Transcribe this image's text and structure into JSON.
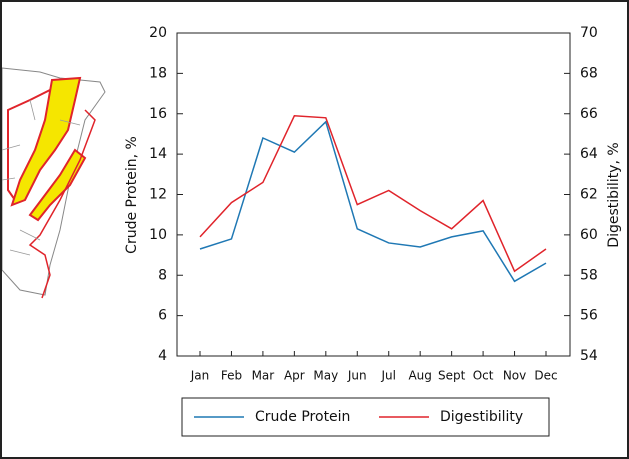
{
  "chart_data": {
    "type": "line",
    "categories": [
      "Jan",
      "Feb",
      "Mar",
      "Apr",
      "May",
      "Jun",
      "Jul",
      "Aug",
      "Sept",
      "Oct",
      "Nov",
      "Dec"
    ],
    "y_label": "Crude Protein, %",
    "y2_label": "Digestibility, %",
    "ylim": [
      4,
      20
    ],
    "yticks": [
      4,
      6,
      8,
      10,
      12,
      14,
      16,
      18,
      20
    ],
    "y2lim": [
      54,
      70
    ],
    "y2ticks": [
      54,
      56,
      58,
      60,
      62,
      64,
      66,
      68,
      70
    ],
    "series": [
      {
        "name": "Crude Protein",
        "color": "#1f78b4",
        "values": [
          9.3,
          9.8,
          14.8,
          14.1,
          15.6,
          10.3,
          9.6,
          9.4,
          9.9,
          10.2,
          7.7,
          8.6
        ]
      },
      {
        "name": "Digestibility",
        "color": "#e0242b",
        "axis": "y2",
        "values": [
          59.9,
          61.6,
          62.6,
          65.9,
          65.8,
          61.5,
          62.2,
          61.2,
          60.3,
          61.7,
          58.2,
          59.3
        ]
      }
    ]
  }
}
